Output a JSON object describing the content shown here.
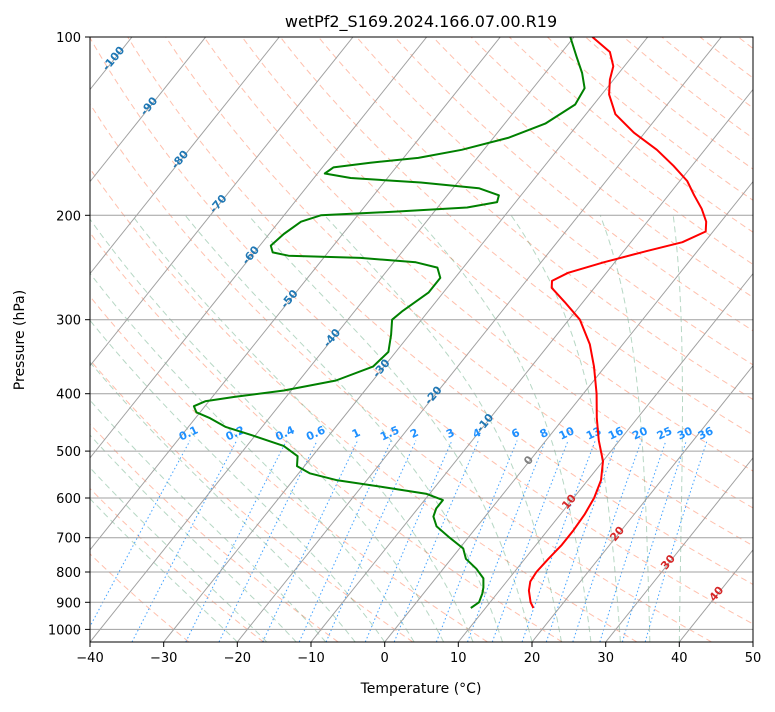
{
  "chart_data": {
    "type": "skew-t",
    "title": "wetPf2_S169.2024.166.07.00.R19",
    "xlabel": "Temperature (°C)",
    "ylabel": "Pressure (hPa)",
    "xlim": [
      -40,
      50
    ],
    "ylim": [
      1050,
      100
    ],
    "y_scale": "log",
    "grid": true,
    "x_ticks": [
      -40,
      -30,
      -20,
      -10,
      0,
      10,
      20,
      30,
      40,
      50
    ],
    "x_tick_labels": [
      "−40",
      "−30",
      "−20",
      "−10",
      "0",
      "10",
      "20",
      "30",
      "40",
      "50"
    ],
    "y_ticks": [
      1000,
      900,
      800,
      700,
      600,
      500,
      400,
      300,
      200,
      100
    ],
    "y_tick_labels": [
      "1000",
      "900",
      "800",
      "700",
      "600",
      "500",
      "400",
      "300",
      "200",
      "100"
    ],
    "isotherm_labels": [
      "-100",
      "-90",
      "-80",
      "-70",
      "-60",
      "-50",
      "-40",
      "-30",
      "-20",
      "-10"
    ],
    "isotherm_label_values": [
      -100,
      -90,
      -80,
      -70,
      -60,
      -50,
      -40,
      -30,
      -20,
      -10
    ],
    "mixing_ratio_labels": [
      "0.1",
      "0.2",
      "0.4",
      "0.6",
      "1",
      "1.5",
      "2",
      "3",
      "4",
      "6",
      "8",
      "10",
      "13",
      "16",
      "20",
      "25",
      "30",
      "36"
    ],
    "mixing_ratio_values": [
      0.1,
      0.2,
      0.4,
      0.6,
      1,
      1.5,
      2,
      3,
      4,
      6,
      8,
      10,
      13,
      16,
      20,
      25,
      30,
      36
    ],
    "warm_isotherm_labels": [
      "0",
      "10",
      "20",
      "30",
      "40"
    ],
    "warm_isotherm_values": [
      0,
      10,
      20,
      30,
      40
    ],
    "colors": {
      "temperature": "#ff0000",
      "dewpoint": "#008000",
      "isotherm": "#a0a0a0",
      "dry_adiabat": "#ff8c69",
      "moist_adiabat": "#2e8b57",
      "mixing_ratio": "#1e90ff",
      "isotherm_label": "#1f77b4",
      "warm_label": "#d62728",
      "zero_label": "#808080"
    },
    "series": [
      {
        "name": "",
        "kind": "temperature",
        "points": [
          {
            "p": 920,
            "t": 16.5
          },
          {
            "p": 900,
            "t": 15.5
          },
          {
            "p": 860,
            "t": 14.0
          },
          {
            "p": 830,
            "t": 13.2
          },
          {
            "p": 800,
            "t": 13.0
          },
          {
            "p": 760,
            "t": 13.2
          },
          {
            "p": 720,
            "t": 13.5
          },
          {
            "p": 680,
            "t": 13.5
          },
          {
            "p": 640,
            "t": 13.3
          },
          {
            "p": 600,
            "t": 12.8
          },
          {
            "p": 560,
            "t": 11.8
          },
          {
            "p": 520,
            "t": 10.0
          },
          {
            "p": 480,
            "t": 7.2
          },
          {
            "p": 440,
            "t": 4.5
          },
          {
            "p": 400,
            "t": 1.8
          },
          {
            "p": 360,
            "t": -1.5
          },
          {
            "p": 330,
            "t": -4.5
          },
          {
            "p": 300,
            "t": -8.5
          },
          {
            "p": 280,
            "t": -12.5
          },
          {
            "p": 265,
            "t": -15.8
          },
          {
            "p": 258,
            "t": -16.5
          },
          {
            "p": 250,
            "t": -15.2
          },
          {
            "p": 240,
            "t": -11.5
          },
          {
            "p": 230,
            "t": -7.0
          },
          {
            "p": 222,
            "t": -3.0
          },
          {
            "p": 213,
            "t": -1.0
          },
          {
            "p": 205,
            "t": -2.0
          },
          {
            "p": 195,
            "t": -4.0
          },
          {
            "p": 185,
            "t": -6.5
          },
          {
            "p": 175,
            "t": -9.0
          },
          {
            "p": 165,
            "t": -12.5
          },
          {
            "p": 155,
            "t": -16.5
          },
          {
            "p": 145,
            "t": -21.5
          },
          {
            "p": 135,
            "t": -26.0
          },
          {
            "p": 125,
            "t": -29.0
          },
          {
            "p": 118,
            "t": -30.5
          },
          {
            "p": 112,
            "t": -31.5
          },
          {
            "p": 106,
            "t": -33.5
          },
          {
            "p": 100,
            "t": -37.5
          }
        ]
      },
      {
        "name": "",
        "kind": "dewpoint",
        "points": [
          {
            "p": 920,
            "t": 8.0
          },
          {
            "p": 900,
            "t": 8.5
          },
          {
            "p": 870,
            "t": 8.0
          },
          {
            "p": 850,
            "t": 7.5
          },
          {
            "p": 820,
            "t": 6.5
          },
          {
            "p": 790,
            "t": 4.5
          },
          {
            "p": 760,
            "t": 2.0
          },
          {
            "p": 730,
            "t": 0.5
          },
          {
            "p": 700,
            "t": -2.5
          },
          {
            "p": 670,
            "t": -5.5
          },
          {
            "p": 645,
            "t": -7.0
          },
          {
            "p": 625,
            "t": -7.5
          },
          {
            "p": 605,
            "t": -7.5
          },
          {
            "p": 590,
            "t": -10.5
          },
          {
            "p": 575,
            "t": -17.0
          },
          {
            "p": 560,
            "t": -24.0
          },
          {
            "p": 545,
            "t": -28.5
          },
          {
            "p": 530,
            "t": -31.0
          },
          {
            "p": 510,
            "t": -32.0
          },
          {
            "p": 490,
            "t": -35.0
          },
          {
            "p": 470,
            "t": -40.5
          },
          {
            "p": 455,
            "t": -45.0
          },
          {
            "p": 440,
            "t": -48.0
          },
          {
            "p": 430,
            "t": -50.5
          },
          {
            "p": 420,
            "t": -51.5
          },
          {
            "p": 412,
            "t": -50.5
          },
          {
            "p": 405,
            "t": -47.0
          },
          {
            "p": 395,
            "t": -41.0
          },
          {
            "p": 380,
            "t": -35.0
          },
          {
            "p": 360,
            "t": -31.5
          },
          {
            "p": 340,
            "t": -31.0
          },
          {
            "p": 318,
            "t": -32.5
          },
          {
            "p": 300,
            "t": -34.0
          },
          {
            "p": 290,
            "t": -33.5
          },
          {
            "p": 270,
            "t": -32.0
          },
          {
            "p": 255,
            "t": -32.0
          },
          {
            "p": 245,
            "t": -33.5
          },
          {
            "p": 240,
            "t": -37.0
          },
          {
            "p": 236,
            "t": -45.0
          },
          {
            "p": 234,
            "t": -55.0
          },
          {
            "p": 231,
            "t": -57.5
          },
          {
            "p": 225,
            "t": -58.5
          },
          {
            "p": 215,
            "t": -58.0
          },
          {
            "p": 205,
            "t": -57.0
          },
          {
            "p": 200,
            "t": -55.0
          },
          {
            "p": 197,
            "t": -45.0
          },
          {
            "p": 194,
            "t": -36.0
          },
          {
            "p": 190,
            "t": -32.5
          },
          {
            "p": 185,
            "t": -33.0
          },
          {
            "p": 180,
            "t": -36.5
          },
          {
            "p": 176,
            "t": -45.0
          },
          {
            "p": 173,
            "t": -55.0
          },
          {
            "p": 170,
            "t": -59.0
          },
          {
            "p": 166,
            "t": -58.5
          },
          {
            "p": 163,
            "t": -54.0
          },
          {
            "p": 160,
            "t": -48.0
          },
          {
            "p": 155,
            "t": -43.0
          },
          {
            "p": 148,
            "t": -38.0
          },
          {
            "p": 140,
            "t": -34.5
          },
          {
            "p": 130,
            "t": -32.5
          },
          {
            "p": 122,
            "t": -33.0
          },
          {
            "p": 115,
            "t": -35.0
          },
          {
            "p": 108,
            "t": -37.5
          },
          {
            "p": 100,
            "t": -40.5
          }
        ]
      }
    ]
  }
}
